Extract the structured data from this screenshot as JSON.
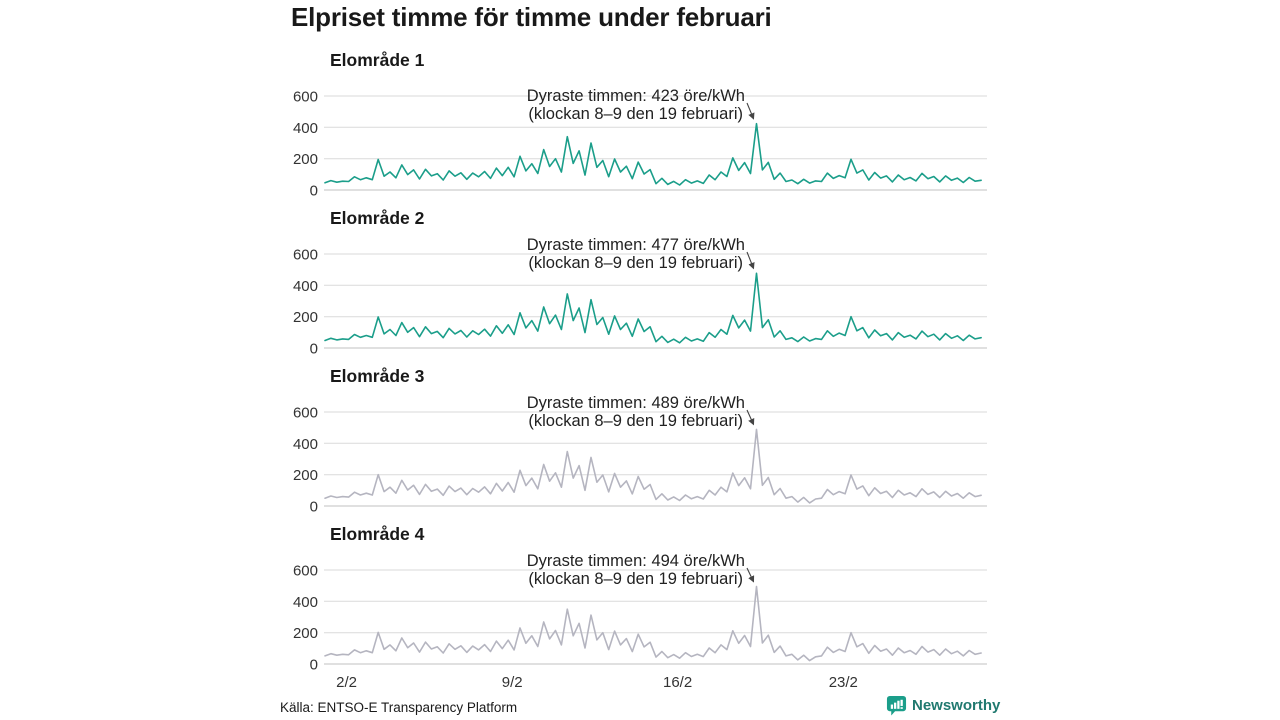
{
  "title": "Elpriset timme för timme under februari",
  "footer": {
    "source": "Källa: ENTSO-E Transparency Platform"
  },
  "brand": {
    "name": "Newsworthy",
    "icon": "newsworthy-speech-bubble-bar-chart",
    "icon_color": "#1b9e8a",
    "text_color": "#20796f"
  },
  "colors": {
    "line_teal": "#1b9e8a",
    "line_gray": "#b5b5c0",
    "grid": "#dadada",
    "baseline": "#c2c2c2",
    "annotation_text": "#222222",
    "arrow": "#444444"
  },
  "chart_data": {
    "type": "line",
    "title": "Elpriset timme för timme under februari",
    "unit": "öre/kWh",
    "month": "februari",
    "grid": true,
    "legend": "none",
    "ylim": [
      0,
      650
    ],
    "y_ticks": [
      "600",
      "400",
      "200",
      "0"
    ],
    "x_tick_labels": [
      "2/2",
      "9/2",
      "16/2",
      "23/2"
    ],
    "x_tick_days": [
      2,
      9,
      16,
      23
    ],
    "sampling": {
      "days": 28,
      "points_per_day": 4,
      "start_hour": 2,
      "step_hours": 6
    },
    "series": [
      {
        "name": "Elområde 1",
        "color": "#1b9e8a",
        "annotation": {
          "line1": "Dyraste timmen: 423 öre/kWh",
          "line2": "(klockan 8–9 den 19 februari)",
          "value": 423,
          "time": "8–9 den 19 februari"
        },
        "values": [
          46,
          60,
          50,
          56,
          54,
          84,
          66,
          78,
          66,
          195,
          88,
          115,
          78,
          160,
          98,
          128,
          70,
          132,
          90,
          104,
          64,
          122,
          88,
          110,
          68,
          108,
          84,
          118,
          74,
          140,
          92,
          145,
          84,
          215,
          122,
          168,
          105,
          258,
          150,
          200,
          115,
          340,
          170,
          250,
          95,
          300,
          145,
          188,
          85,
          198,
          115,
          152,
          72,
          178,
          102,
          130,
          40,
          75,
          36,
          55,
          32,
          66,
          44,
          58,
          42,
          96,
          66,
          115,
          86,
          205,
          125,
          175,
          105,
          423,
          128,
          176,
          68,
          108,
          54,
          64,
          40,
          68,
          44,
          58,
          54,
          108,
          74,
          92,
          78,
          196,
          108,
          128,
          64,
          112,
          76,
          90,
          52,
          96,
          66,
          80,
          58,
          106,
          72,
          86,
          52,
          90,
          62,
          76,
          48,
          80,
          56,
          62
        ]
      },
      {
        "name": "Elområde 2",
        "color": "#1b9e8a",
        "annotation": {
          "line1": "Dyraste timmen: 477 öre/kWh",
          "line2": "(klockan 8–9 den 19 februari)",
          "value": 477,
          "time": "8–9 den 19 februari"
        },
        "values": [
          48,
          62,
          52,
          58,
          55,
          86,
          68,
          80,
          68,
          198,
          90,
          118,
          80,
          162,
          100,
          130,
          72,
          135,
          92,
          106,
          66,
          125,
          90,
          112,
          70,
          110,
          86,
          120,
          76,
          142,
          94,
          148,
          86,
          225,
          128,
          175,
          108,
          262,
          155,
          210,
          118,
          345,
          175,
          255,
          98,
          308,
          150,
          195,
          88,
          205,
          118,
          158,
          75,
          185,
          105,
          135,
          40,
          75,
          36,
          56,
          33,
          68,
          45,
          58,
          43,
          98,
          68,
          118,
          88,
          208,
          128,
          178,
          108,
          477,
          130,
          180,
          70,
          110,
          55,
          65,
          41,
          70,
          45,
          60,
          55,
          110,
          75,
          95,
          80,
          200,
          110,
          130,
          65,
          115,
          78,
          92,
          52,
          98,
          68,
          82,
          58,
          108,
          72,
          88,
          52,
          92,
          62,
          78,
          48,
          82,
          58,
          66
        ]
      },
      {
        "name": "Elområde 3",
        "color": "#b5b5c0",
        "annotation": {
          "line1": "Dyraste timmen: 489 öre/kWh",
          "line2": "(klockan 8–9 den 19 februari)",
          "value": 489,
          "time": "8–9 den 19 februari"
        },
        "values": [
          50,
          64,
          54,
          60,
          57,
          88,
          70,
          82,
          70,
          200,
          92,
          120,
          82,
          164,
          102,
          132,
          74,
          138,
          94,
          108,
          68,
          127,
          92,
          114,
          72,
          112,
          88,
          122,
          78,
          144,
          96,
          150,
          88,
          228,
          130,
          178,
          110,
          265,
          158,
          212,
          120,
          348,
          178,
          258,
          100,
          310,
          152,
          198,
          90,
          208,
          120,
          160,
          77,
          188,
          107,
          137,
          42,
          78,
          38,
          58,
          35,
          70,
          46,
          60,
          45,
          100,
          70,
          120,
          90,
          210,
          130,
          180,
          110,
          489,
          132,
          182,
          72,
          112,
          50,
          60,
          25,
          55,
          20,
          45,
          50,
          105,
          72,
          92,
          78,
          198,
          108,
          128,
          66,
          116,
          80,
          94,
          54,
          100,
          70,
          84,
          60,
          110,
          74,
          90,
          54,
          94,
          64,
          80,
          50,
          84,
          60,
          68
        ]
      },
      {
        "name": "Elområde 4",
        "color": "#b5b5c0",
        "annotation": {
          "line1": "Dyraste timmen: 494 öre/kWh",
          "line2": "(klockan 8–9 den 19 februari)",
          "value": 494,
          "time": "8–9 den 19 februari"
        },
        "values": [
          52,
          66,
          56,
          62,
          59,
          90,
          72,
          84,
          72,
          202,
          94,
          122,
          84,
          166,
          104,
          134,
          76,
          140,
          96,
          110,
          70,
          129,
          94,
          116,
          74,
          114,
          90,
          124,
          80,
          146,
          98,
          152,
          90,
          230,
          132,
          180,
          112,
          268,
          160,
          214,
          122,
          350,
          180,
          260,
          102,
          312,
          154,
          200,
          92,
          210,
          122,
          162,
          79,
          190,
          109,
          139,
          44,
          80,
          40,
          60,
          37,
          72,
          48,
          62,
          47,
          102,
          72,
          122,
          92,
          212,
          132,
          182,
          112,
          494,
          134,
          184,
          74,
          114,
          52,
          62,
          26,
          56,
          22,
          46,
          52,
          107,
          74,
          94,
          80,
          200,
          110,
          130,
          68,
          118,
          82,
          96,
          56,
          102,
          72,
          86,
          62,
          112,
          76,
          92,
          56,
          96,
          66,
          82,
          52,
          86,
          62,
          70
        ]
      }
    ]
  }
}
